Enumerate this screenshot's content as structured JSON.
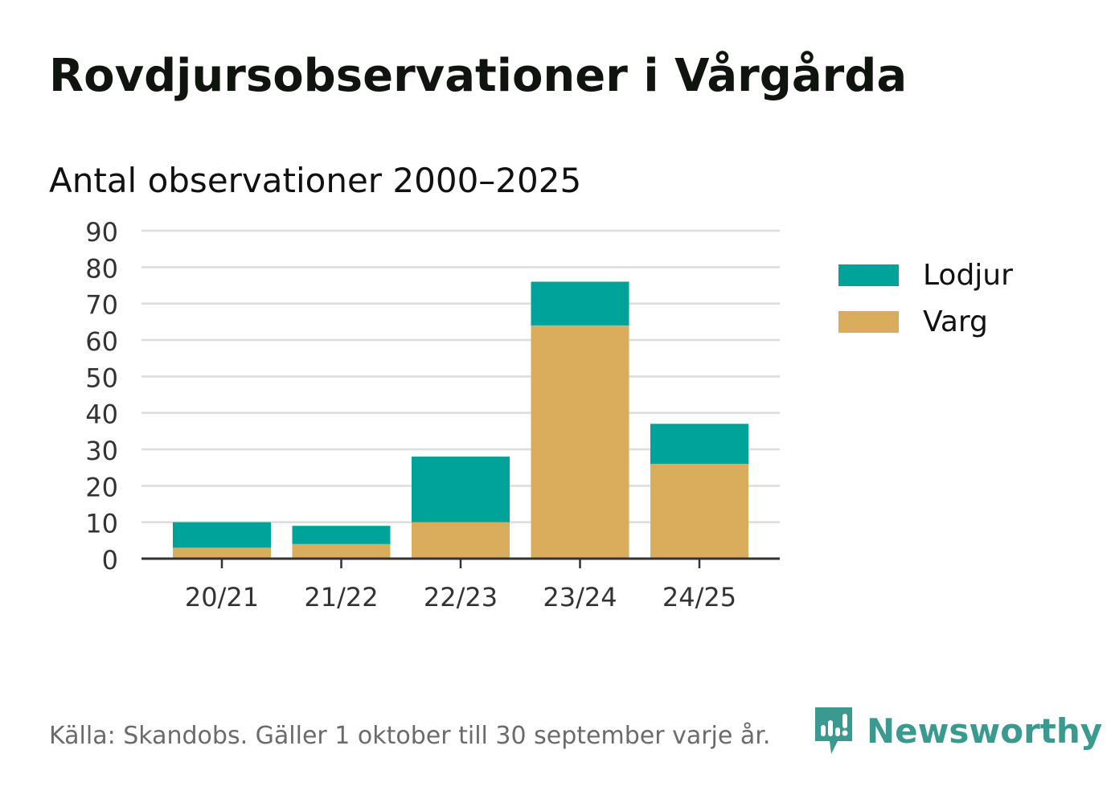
{
  "header": {
    "title": "Rovdjursobservationer i Vårgårda",
    "subtitle": "Antal observationer 2000–2025"
  },
  "chart_data": {
    "type": "bar",
    "stacked": true,
    "title": "Rovdjursobservationer i Vårgårda",
    "subtitle": "Antal observationer 2000–2025",
    "xlabel": "",
    "ylabel": "",
    "categories": [
      "20/21",
      "21/22",
      "22/23",
      "23/24",
      "24/25"
    ],
    "series": [
      {
        "name": "Varg",
        "color": "#d9ad5b",
        "values": [
          3,
          4,
          10,
          64,
          26
        ]
      },
      {
        "name": "Lodjur",
        "color": "#00a39a",
        "values": [
          7,
          5,
          18,
          12,
          11
        ]
      }
    ],
    "ylim": [
      0,
      90
    ],
    "yticks": [
      0,
      10,
      20,
      30,
      40,
      50,
      60,
      70,
      80,
      90
    ],
    "grid": true,
    "legend_position": "right",
    "legend_order": [
      "Lodjur",
      "Varg"
    ]
  },
  "legend": {
    "items": [
      {
        "label": "Lodjur",
        "color": "#00a39a"
      },
      {
        "label": "Varg",
        "color": "#d9ad5b"
      }
    ]
  },
  "footer": {
    "source": "Källa: Skandobs. Gäller 1 oktober till 30 september varje år.",
    "brand": "Newsworthy",
    "brand_icon": "newsworthy-logo-icon",
    "brand_color": "#3a9a8f"
  }
}
